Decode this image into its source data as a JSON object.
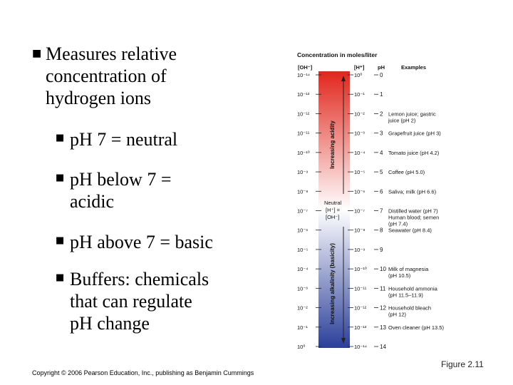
{
  "bullets": {
    "main": [
      "Measures relative",
      "concentration of",
      "hydrogen ions"
    ],
    "sub": [
      [
        "pH 7 = neutral"
      ],
      [
        "pH below 7 =",
        "acidic"
      ],
      [
        "pH above 7 = basic"
      ],
      [
        "Buffers: chemicals",
        "that can regulate",
        "pH change"
      ]
    ]
  },
  "figure": {
    "title": "Concentration in moles/liter",
    "col_oh": "[OH⁻]",
    "col_h": "[H⁺]",
    "col_ph": "pH",
    "col_examples": "Examples",
    "acid_label": "Increasing acidity",
    "base_label": "Increasing alkalinity (basicity)",
    "neutral": [
      "Neutral",
      "[H⁺] =",
      "[OH⁻]"
    ],
    "rows": [
      {
        "oh": "10⁻¹⁴",
        "h": "10⁰",
        "ph": "0",
        "ex": []
      },
      {
        "oh": "10⁻¹³",
        "h": "10⁻¹",
        "ph": "1",
        "ex": []
      },
      {
        "oh": "10⁻¹²",
        "h": "10⁻²",
        "ph": "2",
        "ex": [
          "Lemon juice; gastric",
          "juice (pH 2)"
        ]
      },
      {
        "oh": "10⁻¹¹",
        "h": "10⁻³",
        "ph": "3",
        "ex": [
          "Grapefruit juice (pH 3)"
        ]
      },
      {
        "oh": "10⁻¹⁰",
        "h": "10⁻⁴",
        "ph": "4",
        "ex": [
          "Tomato juice (pH 4.2)"
        ]
      },
      {
        "oh": "10⁻⁹",
        "h": "10⁻⁵",
        "ph": "5",
        "ex": [
          "Coffee (pH 5.0)"
        ]
      },
      {
        "oh": "10⁻⁸",
        "h": "10⁻⁶",
        "ph": "6",
        "ex": [
          "Saliva; milk (pH 6.6)"
        ]
      },
      {
        "oh": "10⁻⁷",
        "h": "10⁻⁷",
        "ph": "7",
        "ex": [
          "Distilled water (pH 7)",
          "Human blood; semen",
          "(pH 7.4)"
        ]
      },
      {
        "oh": "10⁻⁶",
        "h": "10⁻⁸",
        "ph": "8",
        "ex": [
          "Seawater (pH 8.4)"
        ]
      },
      {
        "oh": "10⁻⁵",
        "h": "10⁻⁹",
        "ph": "9",
        "ex": []
      },
      {
        "oh": "10⁻⁴",
        "h": "10⁻¹⁰",
        "ph": "10",
        "ex": [
          "Milk of magnesia",
          "(pH 10.5)"
        ]
      },
      {
        "oh": "10⁻³",
        "h": "10⁻¹¹",
        "ph": "11",
        "ex": [
          "Household ammonia",
          "(pH 11.5–11.9)"
        ]
      },
      {
        "oh": "10⁻²",
        "h": "10⁻¹²",
        "ph": "12",
        "ex": [
          "Household bleach",
          "(pH 12)"
        ]
      },
      {
        "oh": "10⁻¹",
        "h": "10⁻¹³",
        "ph": "13",
        "ex": [
          "Oven cleaner (pH 13.5)"
        ]
      },
      {
        "oh": "10⁰",
        "h": "10⁻¹⁴",
        "ph": "14",
        "ex": []
      }
    ],
    "colors": {
      "acid": "#e0261c",
      "neutral": "#ffffff",
      "base": "#2b3f9a"
    }
  },
  "footer": {
    "copyright": "Copyright © 2006 Pearson Education, Inc., publishing as Benjamin Cummings",
    "figure_label": "Figure 2.11"
  }
}
